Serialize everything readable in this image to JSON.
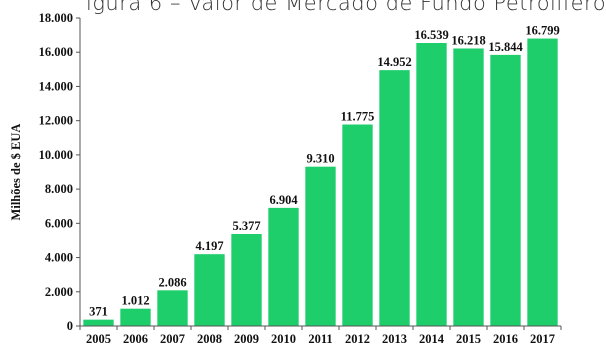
{
  "title_fragment": "igura 6 – Valor de Mercado de Fundo Petrolífero",
  "chart_data": {
    "type": "bar",
    "title": "igura 6 – Valor de Mercado de Fundo Petrolífero",
    "ylabel": "Milhões de $ EUA",
    "xlabel": "",
    "categories": [
      "2005",
      "2006",
      "2007",
      "2008",
      "2009",
      "2010",
      "2011",
      "2012",
      "2013",
      "2014",
      "2015",
      "2016",
      "2017"
    ],
    "values": [
      371,
      1012,
      2086,
      4197,
      5377,
      6904,
      9310,
      11775,
      14952,
      16539,
      16218,
      15844,
      16799
    ],
    "value_labels": [
      "371",
      "1.012",
      "2.086",
      "4.197",
      "5.377",
      "6.904",
      "9.310",
      "11.775",
      "14.952",
      "16.539",
      "16.218",
      "15.844",
      "16.799"
    ],
    "ylim": [
      0,
      18000
    ],
    "yticks": [
      0,
      2000,
      4000,
      6000,
      8000,
      10000,
      12000,
      14000,
      16000,
      18000
    ],
    "ytick_labels": [
      "0",
      "2.000",
      "4.000",
      "6.000",
      "8.000",
      "10.000",
      "12.000",
      "14.000",
      "16.000",
      "18.000"
    ],
    "bar_color": "#1dce6b",
    "axis_color": "#555555",
    "grid": false,
    "legend": "none"
  }
}
